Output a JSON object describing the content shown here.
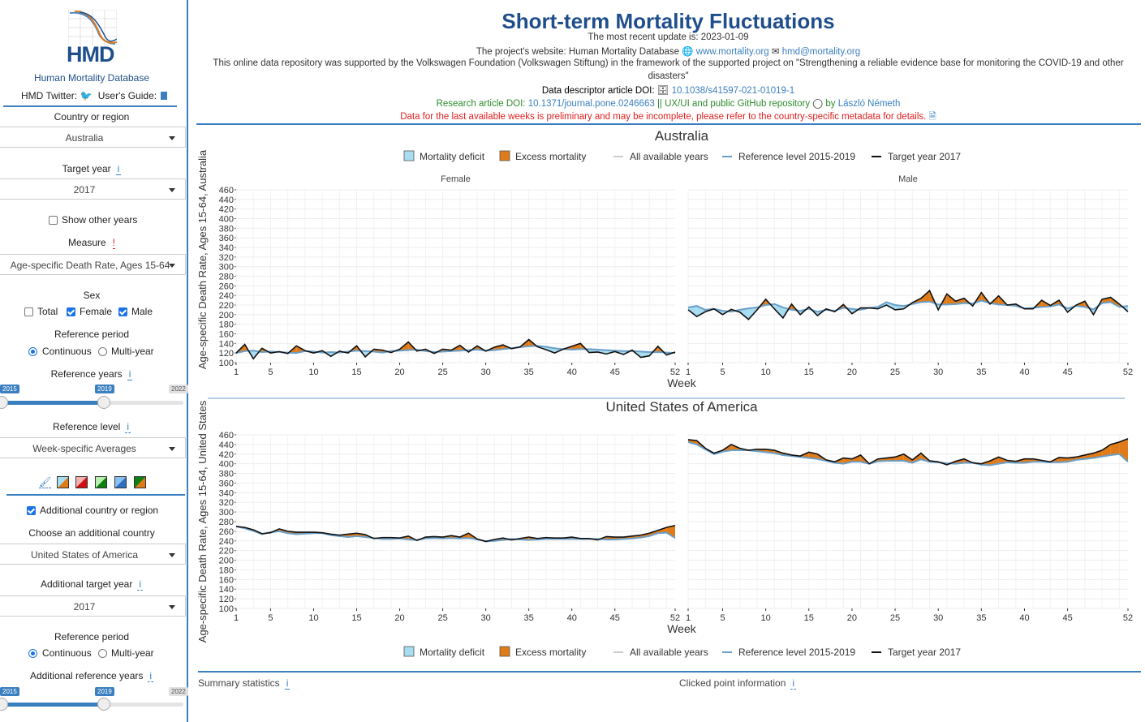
{
  "sidebar": {
    "logo_text": "HMD",
    "db_name": "Human Mortality Database",
    "twitter_label": "HMD Twitter:",
    "guide_label": "User's Guide:",
    "country_label": "Country or region",
    "country_value": "Australia",
    "target_year_label": "Target year",
    "target_year_value": "2017",
    "show_other_years": "Show other years",
    "measure_label": "Measure",
    "measure_value": "Age-specific Death Rate, Ages 15-64",
    "sex_label": "Sex",
    "sex_total": "Total",
    "sex_female": "Female",
    "sex_male": "Male",
    "ref_period_label": "Reference period",
    "ref_continuous": "Continuous",
    "ref_multiyear": "Multi-year",
    "ref_years_label": "Reference years",
    "slider_min": "2015",
    "slider_val": "2019",
    "slider_max": "2022",
    "ref_level_label": "Reference level",
    "ref_level_value": "Week-specific Averages",
    "info_glyph": "i",
    "measure_glyph": "!",
    "add_country_check": "Additional country or region",
    "choose_add_label": "Choose an additional country",
    "add_country_value": "United States of America",
    "add_target_label": "Additional target year",
    "add_target_value": "2017",
    "add_ref_period_label": "Reference period",
    "add_ref_continuous": "Continuous",
    "add_ref_multiyear": "Multi-year",
    "add_ref_years_label": "Additional reference years",
    "add_slider_min": "2015",
    "add_slider_val": "2019",
    "add_slider_max": "2022"
  },
  "header": {
    "title": "Short-term Mortality Fluctuations",
    "update": "The most recent update is: 2023-01-09",
    "website_prefix": "The project's website: Human Mortality Database",
    "website_link": "www.mortality.org",
    "email_link": "hmd@mortality.org",
    "funding_1": "This online data repository was supported by the Volkswagen Foundation (Volkswagen Stiftung) in the framework of the supported project on \"Strengthening a reliable evidence base for monitoring the COVID-19 and other",
    "funding_2": "disasters\"",
    "doi_label": "Data descriptor article DOI:",
    "doi_link": "10.1038/s41597-021-01019-1",
    "research_label": "Research article DOI:",
    "research_link": "10.1371/journal.pone.0246663",
    "repo_text": "|| UX/UI and public GitHub repository",
    "by_text": "by",
    "author_link": "László Németh",
    "warning": "Data for the last available weeks is preliminary and may be incomplete, please refer to the country-specific metadata for details."
  },
  "legend": {
    "deficit": "Mortality deficit",
    "excess": "Excess mortality",
    "all_years": "All available years",
    "reference": "Reference level 2015-2019",
    "target": "Target year 2017"
  },
  "footer": {
    "summary": "Summary statistics",
    "clicked": "Clicked point information"
  },
  "colors": {
    "accent": "#3a7fc0",
    "title": "#1f4e8c",
    "excess": "#e07b1a",
    "deficit": "#a8dcf0",
    "reference": "#6a9fc8",
    "target": "#111111",
    "warning": "#e02020",
    "research": "#2e8b2e"
  },
  "chart_data": [
    {
      "type": "area",
      "title": "Australia",
      "ylabel": "Age-specific Death Rate, Ages 15-64, Australia",
      "xlabel": "Week",
      "ylim": [
        100,
        460
      ],
      "yticks": [
        100,
        120,
        140,
        160,
        180,
        200,
        220,
        240,
        260,
        280,
        300,
        320,
        340,
        360,
        380,
        400,
        420,
        440,
        460
      ],
      "xticks": [
        1,
        5,
        10,
        15,
        20,
        25,
        30,
        35,
        40,
        45,
        52
      ],
      "panels": [
        {
          "name": "Female",
          "reference": [
            120,
            124,
            125,
            122,
            123,
            122,
            121,
            120,
            124,
            123,
            121,
            122,
            121,
            123,
            125,
            124,
            123,
            121,
            124,
            125,
            126,
            127,
            124,
            122,
            123,
            124,
            125,
            126,
            127,
            125,
            126,
            128,
            130,
            132,
            134,
            135,
            133,
            130,
            128,
            127,
            128,
            128,
            127,
            126,
            125,
            124,
            124,
            123,
            122,
            122,
            121,
            120
          ],
          "target": [
            120,
            138,
            108,
            130,
            120,
            123,
            119,
            135,
            125,
            120,
            125,
            113,
            124,
            120,
            135,
            112,
            128,
            126,
            121,
            128,
            143,
            124,
            128,
            119,
            128,
            126,
            136,
            122,
            135,
            124,
            132,
            137,
            129,
            133,
            148,
            133,
            127,
            120,
            128,
            134,
            140,
            121,
            122,
            118,
            123,
            117,
            126,
            111,
            114,
            134,
            116,
            122
          ]
        },
        {
          "name": "Male",
          "reference": [
            215,
            218,
            210,
            212,
            208,
            206,
            210,
            213,
            215,
            220,
            222,
            215,
            210,
            208,
            212,
            206,
            210,
            208,
            214,
            212,
            210,
            214,
            216,
            226,
            220,
            218,
            222,
            226,
            227,
            221,
            221,
            222,
            224,
            223,
            229,
            224,
            221,
            220,
            218,
            213,
            214,
            216,
            217,
            221,
            213,
            218,
            216,
            211,
            224,
            226,
            216,
            218
          ],
          "target": [
            210,
            196,
            206,
            212,
            200,
            211,
            205,
            190,
            210,
            232,
            212,
            193,
            222,
            200,
            216,
            198,
            212,
            206,
            221,
            202,
            214,
            214,
            212,
            220,
            210,
            212,
            225,
            234,
            250,
            210,
            243,
            228,
            234,
            218,
            246,
            222,
            239,
            220,
            222,
            212,
            212,
            230,
            219,
            230,
            205,
            220,
            228,
            200,
            232,
            236,
            222,
            206
          ]
        }
      ]
    },
    {
      "type": "area",
      "title": "United States of America",
      "ylabel": "Age-specific Death Rate, Ages 15-64, United States",
      "xlabel": "Week",
      "ylim": [
        100,
        460
      ],
      "yticks": [
        100,
        120,
        140,
        160,
        180,
        200,
        220,
        240,
        260,
        280,
        300,
        320,
        340,
        360,
        380,
        400,
        420,
        440,
        460
      ],
      "xticks": [
        1,
        5,
        10,
        15,
        20,
        25,
        30,
        35,
        40,
        45,
        52
      ],
      "panels": [
        {
          "name": "Female",
          "reference": [
            270,
            266,
            261,
            254,
            258,
            260,
            256,
            254,
            255,
            256,
            256,
            252,
            250,
            248,
            250,
            248,
            246,
            244,
            244,
            245,
            243,
            242,
            245,
            246,
            245,
            246,
            245,
            246,
            243,
            239,
            240,
            242,
            244,
            243,
            242,
            243,
            244,
            244,
            244,
            244,
            244,
            244,
            244,
            243,
            243,
            244,
            245,
            247,
            250,
            256,
            257,
            246
          ],
          "target": [
            270,
            268,
            263,
            255,
            257,
            265,
            260,
            258,
            258,
            258,
            257,
            254,
            252,
            254,
            256,
            253,
            245,
            247,
            247,
            246,
            250,
            241,
            248,
            249,
            248,
            251,
            248,
            256,
            244,
            239,
            243,
            246,
            242,
            245,
            248,
            245,
            247,
            246,
            246,
            248,
            245,
            245,
            242,
            249,
            248,
            248,
            250,
            252,
            256,
            262,
            268,
            272
          ]
        },
        {
          "name": "Male",
          "reference": [
            445,
            440,
            430,
            420,
            425,
            428,
            428,
            428,
            426,
            424,
            422,
            418,
            416,
            414,
            412,
            410,
            406,
            402,
            400,
            404,
            404,
            400,
            405,
            406,
            406,
            406,
            402,
            409,
            404,
            403,
            401,
            400,
            402,
            402,
            398,
            397,
            400,
            403,
            402,
            402,
            404,
            404,
            403,
            403,
            404,
            408,
            410,
            412,
            415,
            418,
            420,
            404
          ],
          "target": [
            450,
            448,
            432,
            422,
            428,
            440,
            432,
            428,
            430,
            430,
            428,
            422,
            418,
            416,
            424,
            420,
            408,
            404,
            412,
            410,
            418,
            400,
            410,
            412,
            414,
            420,
            408,
            422,
            406,
            404,
            398,
            405,
            410,
            402,
            400,
            406,
            414,
            407,
            405,
            410,
            410,
            407,
            404,
            413,
            412,
            414,
            418,
            422,
            428,
            440,
            445,
            452
          ]
        }
      ]
    }
  ]
}
